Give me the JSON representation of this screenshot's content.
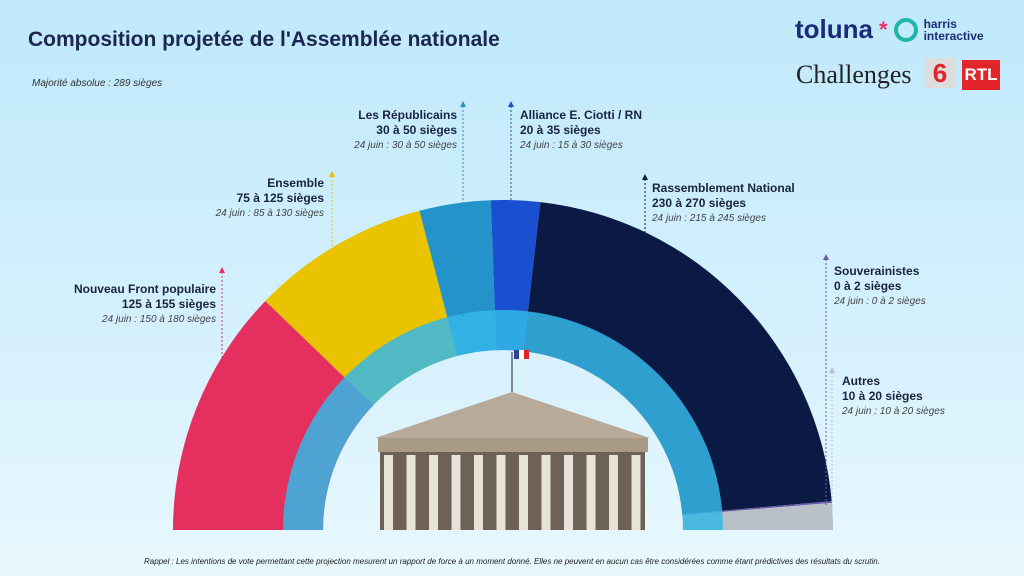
{
  "title": "Composition projetée de l'Assemblée nationale",
  "majority": "Majorité absolue : 289 sièges",
  "logos": {
    "toluna": "toluna",
    "harris": "harris interactive",
    "challenges": "Challenges",
    "m6": "6",
    "rtl": "RTL"
  },
  "footer": "Rappel : Les intentions de vote permettant cette projection mesurent un rapport de force à un moment donné. Elles ne peuvent en aucun cas être considérées comme étant prédictives des résultats du scrutin.",
  "chart_data": {
    "type": "pie",
    "title": "Composition projetée de l'Assemblée nationale",
    "layout": "hemicycle",
    "series": [
      {
        "name": "Nouveau Front populaire",
        "range": "125 à 155 sièges",
        "min": 125,
        "max": 155,
        "previous": "24 juin : 150 à 180 sièges",
        "color": "#e5305f"
      },
      {
        "name": "Ensemble",
        "range": "75 à 125 sièges",
        "min": 75,
        "max": 125,
        "previous": "24 juin : 85 à 130 sièges",
        "color": "#e9c200"
      },
      {
        "name": "Les Républicains",
        "range": "30 à 50 sièges",
        "min": 30,
        "max": 50,
        "previous": "24 juin : 30 à 50 sièges",
        "color": "#2493c9"
      },
      {
        "name": "Alliance E. Ciotti / RN",
        "range": "20 à 35 sièges",
        "min": 20,
        "max": 35,
        "previous": "24 juin : 15 à 30 sièges",
        "color": "#1a4fd0"
      },
      {
        "name": "Rassemblement National",
        "range": "230 à 270 sièges",
        "min": 230,
        "max": 270,
        "previous": "24 juin : 215 à 245 sièges",
        "color": "#0b1a45"
      },
      {
        "name": "Souverainistes",
        "range": "0 à 2 sièges",
        "min": 0,
        "max": 2,
        "previous": "24 juin : 0 à 2 sièges",
        "color": "#6a5aa8"
      },
      {
        "name": "Autres",
        "range": "10 à 20 sièges",
        "min": 10,
        "max": 20,
        "previous": "24 juin : 10 à 20 sièges",
        "color": "#b9c0c8"
      }
    ]
  }
}
